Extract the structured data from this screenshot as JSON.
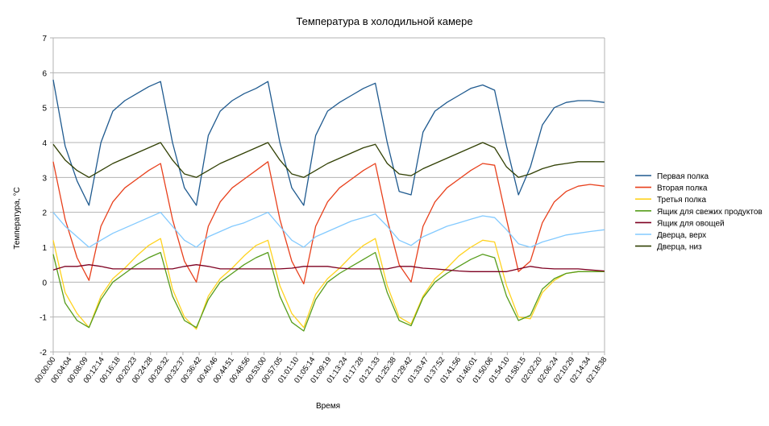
{
  "chart_data": {
    "type": "line",
    "title": "Температура в холодильной камере",
    "xlabel": "Время",
    "ylabel": "Температура, °C",
    "ylim": [
      -2,
      7
    ],
    "yticks": [
      -2,
      -1,
      0,
      1,
      2,
      3,
      4,
      5,
      6,
      7
    ],
    "grid": "horizontal",
    "legend_position": "right",
    "xtick_labels": [
      "00:00:00",
      "00:04:04",
      "00:08:09",
      "00:12:14",
      "00:16:18",
      "00:20:23",
      "00:24:28",
      "00:28:32",
      "00:32:37",
      "00:36:42",
      "00:40:46",
      "00:44:51",
      "00:48:56",
      "00:53:00",
      "00:57:05",
      "01:01:10",
      "01:05:14",
      "01:09:19",
      "01:13:24",
      "01:17:28",
      "01:21:33",
      "01:25:38",
      "01:29:42",
      "01:33:47",
      "01:37:52",
      "01:41:56",
      "01:46:01",
      "01:50:06",
      "01:54:10",
      "01:58:15",
      "02:02:20",
      "02:06:24",
      "02:10:29",
      "02:14:34",
      "02:18:38"
    ],
    "x_minutes_max": 138.64,
    "series": [
      {
        "name": "Первая полка",
        "color": "#1f5a8f",
        "x": [
          0,
          3,
          6,
          9,
          12,
          15,
          18,
          21,
          24,
          27,
          30,
          33,
          36,
          39,
          42,
          45,
          48,
          51,
          54,
          57,
          60,
          63,
          66,
          69,
          72,
          75,
          78,
          81,
          84,
          87,
          90,
          93,
          96,
          99,
          102,
          105,
          108,
          111,
          114,
          117,
          120,
          123,
          126,
          129,
          132,
          135,
          138.6
        ],
        "values": [
          5.8,
          3.9,
          2.9,
          2.2,
          4.0,
          4.9,
          5.2,
          5.4,
          5.6,
          5.75,
          4.0,
          2.7,
          2.2,
          4.2,
          4.9,
          5.2,
          5.4,
          5.55,
          5.75,
          4.0,
          2.7,
          2.2,
          4.2,
          4.9,
          5.15,
          5.35,
          5.55,
          5.7,
          4.0,
          2.6,
          2.5,
          4.3,
          4.9,
          5.15,
          5.35,
          5.55,
          5.65,
          5.5,
          3.9,
          2.5,
          3.3,
          4.5,
          5.0,
          5.15,
          5.2,
          5.2,
          5.15
        ]
      },
      {
        "name": "Вторая полка",
        "color": "#e8401c",
        "x": [
          0,
          3,
          6,
          9,
          12,
          15,
          18,
          21,
          24,
          27,
          30,
          33,
          36,
          39,
          42,
          45,
          48,
          51,
          54,
          57,
          60,
          63,
          66,
          69,
          72,
          75,
          78,
          81,
          84,
          87,
          90,
          93,
          96,
          99,
          102,
          105,
          108,
          111,
          114,
          117,
          120,
          123,
          126,
          129,
          132,
          135,
          138.6
        ],
        "values": [
          3.45,
          1.8,
          0.7,
          0.05,
          1.6,
          2.3,
          2.7,
          2.95,
          3.2,
          3.4,
          1.8,
          0.6,
          0.0,
          1.6,
          2.3,
          2.7,
          2.95,
          3.2,
          3.45,
          1.8,
          0.6,
          -0.05,
          1.6,
          2.3,
          2.7,
          2.95,
          3.2,
          3.4,
          1.8,
          0.5,
          0.0,
          1.6,
          2.3,
          2.7,
          2.95,
          3.2,
          3.4,
          3.35,
          1.8,
          0.3,
          0.6,
          1.7,
          2.3,
          2.6,
          2.75,
          2.8,
          2.75
        ]
      },
      {
        "name": "Третья полка",
        "color": "#ffd320",
        "x": [
          0,
          3,
          6,
          9,
          12,
          15,
          18,
          21,
          24,
          27,
          30,
          33,
          36,
          39,
          42,
          45,
          48,
          51,
          54,
          57,
          60,
          63,
          66,
          69,
          72,
          75,
          78,
          81,
          84,
          87,
          90,
          93,
          96,
          99,
          102,
          105,
          108,
          111,
          114,
          117,
          120,
          123,
          126,
          129,
          132,
          135,
          138.6
        ],
        "values": [
          1.2,
          -0.3,
          -0.9,
          -1.3,
          -0.4,
          0.1,
          0.4,
          0.75,
          1.05,
          1.25,
          -0.2,
          -1.0,
          -1.35,
          -0.4,
          0.1,
          0.4,
          0.75,
          1.05,
          1.2,
          -0.1,
          -0.9,
          -1.3,
          -0.35,
          0.1,
          0.4,
          0.75,
          1.05,
          1.25,
          -0.1,
          -1.0,
          -1.2,
          -0.4,
          0.1,
          0.4,
          0.75,
          1.0,
          1.2,
          1.15,
          -0.1,
          -1.0,
          -1.05,
          -0.3,
          0.05,
          0.25,
          0.3,
          0.3,
          0.3
        ]
      },
      {
        "name": "Ящик для свежих продуктов",
        "color": "#579d1c",
        "x": [
          0,
          3,
          6,
          9,
          12,
          15,
          18,
          21,
          24,
          27,
          30,
          33,
          36,
          39,
          42,
          45,
          48,
          51,
          54,
          57,
          60,
          63,
          66,
          69,
          72,
          75,
          78,
          81,
          84,
          87,
          90,
          93,
          96,
          99,
          102,
          105,
          108,
          111,
          114,
          117,
          120,
          123,
          126,
          129,
          132,
          135,
          138.6
        ],
        "values": [
          0.8,
          -0.6,
          -1.1,
          -1.3,
          -0.5,
          0.0,
          0.25,
          0.5,
          0.7,
          0.85,
          -0.4,
          -1.1,
          -1.3,
          -0.5,
          0.0,
          0.25,
          0.5,
          0.7,
          0.85,
          -0.4,
          -1.15,
          -1.4,
          -0.5,
          0.0,
          0.25,
          0.45,
          0.65,
          0.85,
          -0.3,
          -1.1,
          -1.25,
          -0.45,
          0.0,
          0.25,
          0.45,
          0.65,
          0.8,
          0.7,
          -0.4,
          -1.1,
          -0.95,
          -0.2,
          0.1,
          0.25,
          0.3,
          0.3,
          0.3
        ]
      },
      {
        "name": "Ящик для овощей",
        "color": "#7e0021",
        "x": [
          0,
          3,
          6,
          9,
          12,
          15,
          18,
          21,
          24,
          27,
          30,
          33,
          36,
          39,
          42,
          45,
          48,
          51,
          54,
          57,
          60,
          63,
          66,
          69,
          72,
          75,
          78,
          81,
          84,
          87,
          90,
          93,
          96,
          99,
          102,
          105,
          108,
          111,
          114,
          117,
          120,
          123,
          126,
          129,
          132,
          135,
          138.6
        ],
        "values": [
          0.35,
          0.45,
          0.45,
          0.5,
          0.45,
          0.38,
          0.38,
          0.38,
          0.38,
          0.38,
          0.38,
          0.45,
          0.5,
          0.45,
          0.38,
          0.38,
          0.38,
          0.38,
          0.38,
          0.38,
          0.4,
          0.45,
          0.45,
          0.45,
          0.4,
          0.38,
          0.38,
          0.38,
          0.38,
          0.45,
          0.45,
          0.4,
          0.38,
          0.35,
          0.32,
          0.3,
          0.3,
          0.3,
          0.3,
          0.38,
          0.45,
          0.4,
          0.38,
          0.38,
          0.38,
          0.35,
          0.32
        ]
      },
      {
        "name": "Дверца, верх",
        "color": "#83caff",
        "x": [
          0,
          3,
          6,
          9,
          12,
          15,
          18,
          21,
          24,
          27,
          30,
          33,
          36,
          39,
          42,
          45,
          48,
          51,
          54,
          57,
          60,
          63,
          66,
          69,
          72,
          75,
          78,
          81,
          84,
          87,
          90,
          93,
          96,
          99,
          102,
          105,
          108,
          111,
          114,
          117,
          120,
          123,
          126,
          129,
          132,
          135,
          138.6
        ],
        "values": [
          2.0,
          1.6,
          1.3,
          1.0,
          1.2,
          1.4,
          1.55,
          1.7,
          1.85,
          2.0,
          1.6,
          1.2,
          1.0,
          1.3,
          1.45,
          1.6,
          1.7,
          1.85,
          2.0,
          1.6,
          1.2,
          1.0,
          1.3,
          1.45,
          1.6,
          1.75,
          1.85,
          1.95,
          1.6,
          1.2,
          1.05,
          1.3,
          1.45,
          1.6,
          1.7,
          1.8,
          1.9,
          1.85,
          1.5,
          1.1,
          1.0,
          1.15,
          1.25,
          1.35,
          1.4,
          1.45,
          1.5
        ]
      },
      {
        "name": "Дверца, низ",
        "color": "#314004",
        "x": [
          0,
          3,
          6,
          9,
          12,
          15,
          18,
          21,
          24,
          27,
          30,
          33,
          36,
          39,
          42,
          45,
          48,
          51,
          54,
          57,
          60,
          63,
          66,
          69,
          72,
          75,
          78,
          81,
          84,
          87,
          90,
          93,
          96,
          99,
          102,
          105,
          108,
          111,
          114,
          117,
          120,
          123,
          126,
          129,
          132,
          135,
          138.6
        ],
        "values": [
          3.95,
          3.5,
          3.2,
          3.0,
          3.2,
          3.4,
          3.55,
          3.7,
          3.85,
          4.0,
          3.5,
          3.1,
          3.0,
          3.2,
          3.4,
          3.55,
          3.7,
          3.85,
          4.0,
          3.5,
          3.1,
          3.0,
          3.2,
          3.4,
          3.55,
          3.7,
          3.85,
          3.95,
          3.4,
          3.1,
          3.05,
          3.25,
          3.4,
          3.55,
          3.7,
          3.85,
          4.0,
          3.85,
          3.3,
          3.0,
          3.1,
          3.25,
          3.35,
          3.4,
          3.45,
          3.45,
          3.45
        ]
      }
    ]
  }
}
